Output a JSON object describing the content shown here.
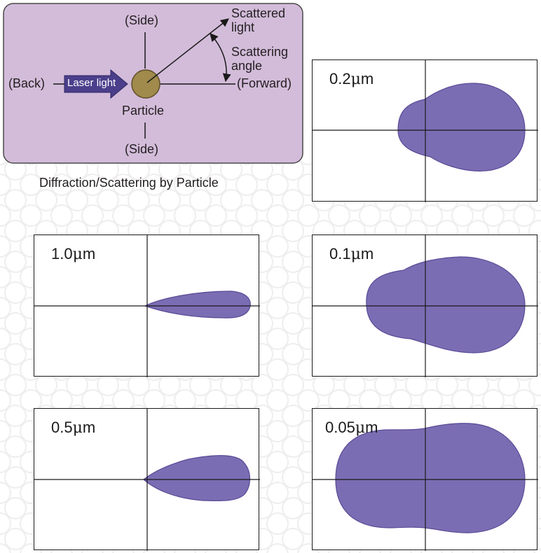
{
  "diagram": {
    "side_top": "(Side)",
    "side_bottom": "(Side)",
    "back": "(Back)",
    "forward": "(Forward)",
    "laser_light": "Laser light",
    "particle": "Particle",
    "scattered_light_1": "Scattered",
    "scattered_light_2": "light",
    "scattering_angle_1": "Scattering",
    "scattering_angle_2": "angle",
    "caption": "Diffraction/Scattering by Particle"
  },
  "plots": {
    "p02": {
      "label_num": "0.2",
      "label_unit": "m"
    },
    "p10": {
      "label_num": "1.0",
      "label_unit": "m"
    },
    "p01": {
      "label_num": "0.1",
      "label_unit": "m"
    },
    "p05": {
      "label_num": "0.5",
      "label_unit": "m"
    },
    "p005": {
      "label_num": "0.05",
      "label_unit": "m"
    }
  },
  "colors": {
    "panel_fill": "#d3bcda",
    "lobe_fill": "#7b6db3",
    "lobe_stroke": "#5a4a96",
    "laser_fill": "#4b3f8c",
    "particle_fill": "#a08a4c"
  }
}
